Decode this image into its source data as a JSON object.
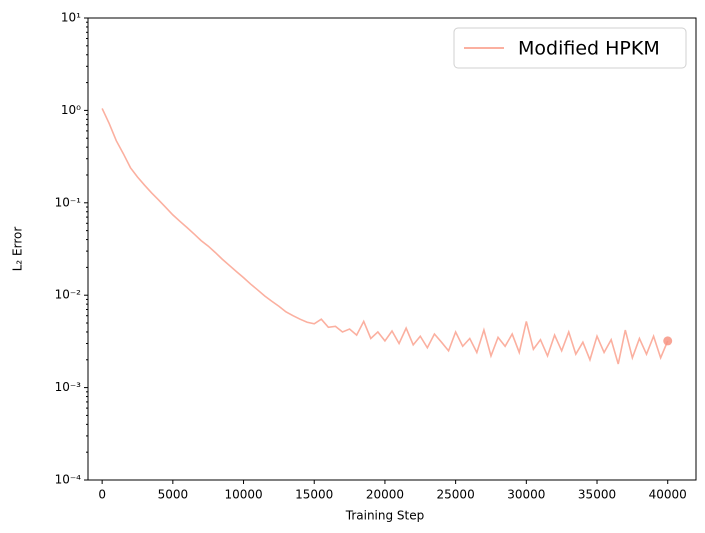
{
  "chart_data": {
    "type": "line",
    "x_label": "Training Step",
    "y_label": "L₂ Error",
    "log_y": true,
    "legend": "upper right",
    "x": [
      0,
      500,
      1000,
      1500,
      2000,
      2500,
      3000,
      3500,
      4000,
      4500,
      5000,
      5500,
      6000,
      6500,
      7000,
      7500,
      8000,
      8500,
      9000,
      9500,
      10000,
      10500,
      11000,
      11500,
      12000,
      12500,
      13000,
      13500,
      14000,
      14500,
      15000,
      15500,
      16000,
      16500,
      17000,
      17500,
      18000,
      18500,
      19000,
      19500,
      20000,
      20500,
      21000,
      21500,
      22000,
      22500,
      23000,
      23500,
      24000,
      24500,
      25000,
      25500,
      26000,
      26500,
      27000,
      27500,
      28000,
      28500,
      29000,
      29500,
      30000,
      30500,
      31000,
      31500,
      32000,
      32500,
      33000,
      33500,
      34000,
      34500,
      35000,
      35500,
      36000,
      36500,
      37000,
      37500,
      38000,
      38500,
      39000,
      39500,
      40000
    ],
    "series": [
      {
        "name": "Modified HPKM",
        "color": "#fbb0a0",
        "marker_color": "#f79482",
        "values": [
          1.05,
          0.72,
          0.47,
          0.34,
          0.24,
          0.19,
          0.155,
          0.128,
          0.107,
          0.089,
          0.074,
          0.063,
          0.054,
          0.046,
          0.039,
          0.034,
          0.029,
          0.0245,
          0.021,
          0.018,
          0.0155,
          0.0132,
          0.0114,
          0.0098,
          0.0086,
          0.0076,
          0.0066,
          0.006,
          0.0055,
          0.0051,
          0.0049,
          0.0055,
          0.0045,
          0.0046,
          0.004,
          0.0043,
          0.0037,
          0.0052,
          0.0034,
          0.004,
          0.0032,
          0.0041,
          0.003,
          0.0044,
          0.0029,
          0.0036,
          0.0027,
          0.0038,
          0.0031,
          0.0025,
          0.004,
          0.0028,
          0.0034,
          0.0024,
          0.0042,
          0.0022,
          0.0035,
          0.0028,
          0.0038,
          0.0024,
          0.0052,
          0.0026,
          0.0033,
          0.0022,
          0.0037,
          0.0025,
          0.004,
          0.0023,
          0.0031,
          0.002,
          0.0036,
          0.0024,
          0.0033,
          0.0018,
          0.0042,
          0.0021,
          0.0034,
          0.0023,
          0.0036,
          0.0021,
          0.0032
        ]
      }
    ],
    "xlim": [
      -1000,
      42000
    ],
    "xticks": [
      0,
      5000,
      10000,
      15000,
      20000,
      25000,
      30000,
      35000,
      40000
    ],
    "ylim": [
      0.0001,
      10
    ],
    "yticks": [
      {
        "value": 0.0001,
        "label": "10⁻⁴"
      },
      {
        "value": 0.001,
        "label": "10⁻³"
      },
      {
        "value": 0.01,
        "label": "10⁻²"
      },
      {
        "value": 0.1,
        "label": "10⁻¹"
      },
      {
        "value": 1,
        "label": "10⁰"
      },
      {
        "value": 10,
        "label": "10¹"
      }
    ]
  }
}
